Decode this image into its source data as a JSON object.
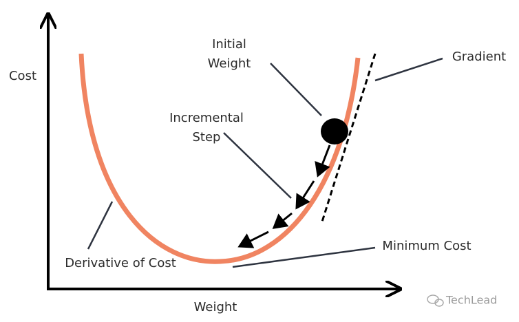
{
  "axes": {
    "y_label": "Cost",
    "x_label": "Weight"
  },
  "annotations": {
    "initial_weight": [
      "Initial",
      "Weight"
    ],
    "incremental_step": [
      "Incremental",
      "Step"
    ],
    "gradient": "Gradient",
    "minimum_cost": "Minimum Cost",
    "derivative": "Derivative of Cost"
  },
  "watermark": "TechLead"
}
